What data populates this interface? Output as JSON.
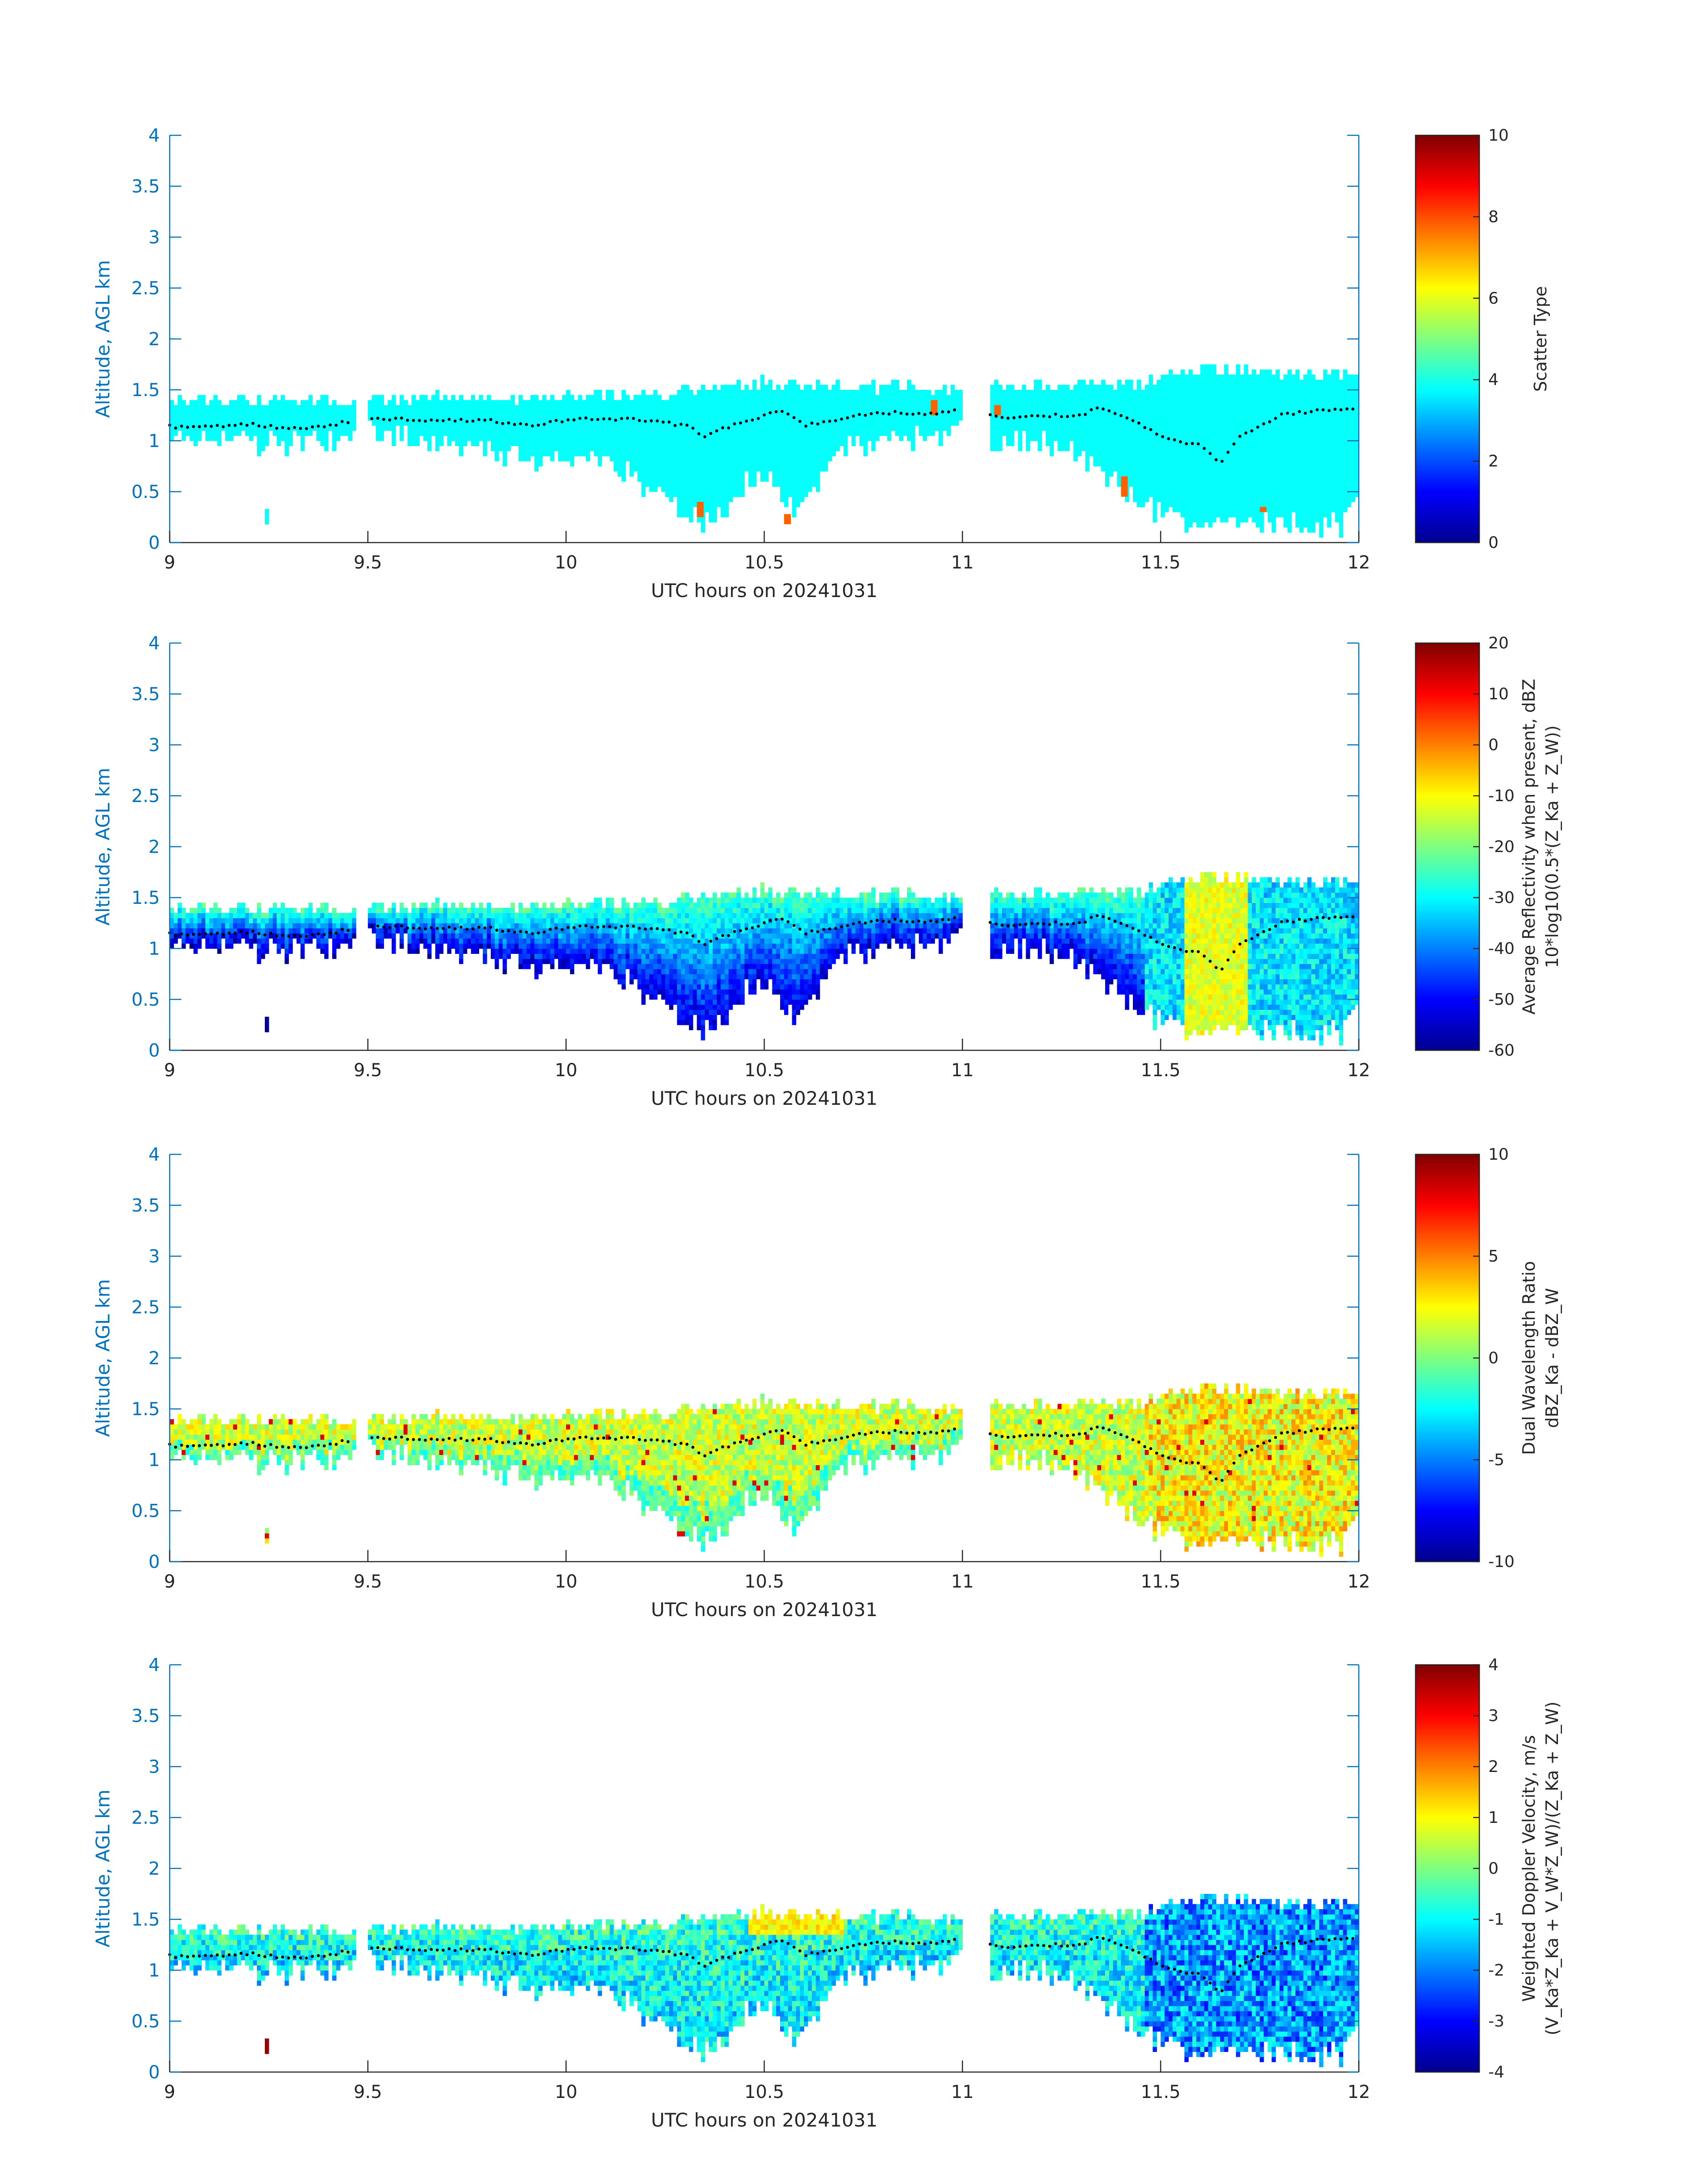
{
  "chart_data": [
    {
      "type": "heatmap",
      "field": "scatter_type",
      "xlabel": "UTC hours on 20241031",
      "ylabel": "Altitude, AGL km",
      "xlim": [
        9,
        12
      ],
      "ylim": [
        0,
        4
      ],
      "xticks": [
        "9",
        "9.5",
        "10",
        "10.5",
        "11",
        "11.5",
        "12"
      ],
      "yticks": [
        "0",
        "0.5",
        "1",
        "1.5",
        "2",
        "2.5",
        "3",
        "3.5",
        "4"
      ],
      "colorbar": {
        "label_lines": [
          "Scatter Type"
        ],
        "range": [
          0,
          10
        ],
        "ticks": [
          "0",
          "2",
          "4",
          "6",
          "8",
          "10"
        ]
      },
      "base_value": 3.8,
      "high_value_patches": [
        {
          "x": 10.33,
          "y0": 0.25,
          "y1": 0.4,
          "value": 7.8
        },
        {
          "x": 10.55,
          "y0": 0.18,
          "y1": 0.28,
          "value": 7.8
        },
        {
          "x": 10.92,
          "y0": 1.25,
          "y1": 1.4,
          "value": 7.8
        },
        {
          "x": 11.08,
          "y0": 1.25,
          "y1": 1.35,
          "value": 7.8
        },
        {
          "x": 11.4,
          "y0": 0.45,
          "y1": 0.65,
          "value": 7.8
        },
        {
          "x": 11.75,
          "y0": 0.3,
          "y1": 0.35,
          "value": 7.8
        }
      ]
    },
    {
      "type": "heatmap",
      "field": "average_reflectivity",
      "xlabel": "UTC hours on 20241031",
      "ylabel": "Altitude, AGL km",
      "xlim": [
        9,
        12
      ],
      "ylim": [
        0,
        4
      ],
      "xticks": [
        "9",
        "9.5",
        "10",
        "10.5",
        "11",
        "11.5",
        "12"
      ],
      "yticks": [
        "0",
        "0.5",
        "1",
        "1.5",
        "2",
        "2.5",
        "3",
        "3.5",
        "4"
      ],
      "colorbar": {
        "label_lines": [
          "Average Reflectivity when present, dBZ",
          "10*log10(0.5*(Z_Ka + Z_W))"
        ],
        "range": [
          -60,
          20
        ],
        "ticks": [
          "-60",
          "-50",
          "-40",
          "-30",
          "-20",
          "-10",
          "0",
          "10",
          "20"
        ]
      }
    },
    {
      "type": "heatmap",
      "field": "dual_wavelength_ratio",
      "xlabel": "UTC hours on 20241031",
      "ylabel": "Altitude, AGL km",
      "xlim": [
        9,
        12
      ],
      "ylim": [
        0,
        4
      ],
      "xticks": [
        "9",
        "9.5",
        "10",
        "10.5",
        "11",
        "11.5",
        "12"
      ],
      "yticks": [
        "0",
        "0.5",
        "1",
        "1.5",
        "2",
        "2.5",
        "3",
        "3.5",
        "4"
      ],
      "colorbar": {
        "label_lines": [
          "Dual Wavelength Ratio",
          "dBZ_Ka - dBZ_W"
        ],
        "range": [
          -10,
          10
        ],
        "ticks": [
          "-10",
          "-5",
          "0",
          "5",
          "10"
        ]
      }
    },
    {
      "type": "heatmap",
      "field": "weighted_doppler_velocity",
      "xlabel": "UTC hours on 20241031",
      "ylabel": "Altitude, AGL km",
      "xlim": [
        9,
        12
      ],
      "ylim": [
        0,
        4
      ],
      "xticks": [
        "9",
        "9.5",
        "10",
        "10.5",
        "11",
        "11.5",
        "12"
      ],
      "yticks": [
        "0",
        "0.5",
        "1",
        "1.5",
        "2",
        "2.5",
        "3",
        "3.5",
        "4"
      ],
      "colorbar": {
        "label_lines": [
          "Weighted Doppler Velocity, m/s",
          "(V_Ka*Z_Ka + V_W*Z_W)/(Z_Ka + Z_W)"
        ],
        "range": [
          -4,
          4
        ],
        "ticks": [
          "-4",
          "-3",
          "-2",
          "-1",
          "0",
          "1",
          "2",
          "3",
          "4"
        ]
      }
    }
  ],
  "cloud_envelope": {
    "columns_per_hour": 100,
    "data_gaps": [
      [
        9.465,
        9.5
      ],
      [
        10.995,
        11.07
      ]
    ],
    "top_km": [
      {
        "x": 9.0,
        "v": 1.35
      },
      {
        "x": 9.5,
        "v": 1.38
      },
      {
        "x": 9.8,
        "v": 1.4
      },
      {
        "x": 10.2,
        "v": 1.42
      },
      {
        "x": 10.5,
        "v": 1.55
      },
      {
        "x": 10.7,
        "v": 1.5
      },
      {
        "x": 11.0,
        "v": 1.5
      },
      {
        "x": 11.3,
        "v": 1.52
      },
      {
        "x": 11.45,
        "v": 1.55
      },
      {
        "x": 11.6,
        "v": 1.7
      },
      {
        "x": 11.8,
        "v": 1.65
      },
      {
        "x": 12.0,
        "v": 1.6
      }
    ],
    "base_km": [
      {
        "x": 9.0,
        "v": 1.0
      },
      {
        "x": 9.45,
        "v": 1.0
      },
      {
        "x": 9.5,
        "v": 1.08
      },
      {
        "x": 9.7,
        "v": 1.0
      },
      {
        "x": 9.9,
        "v": 0.85
      },
      {
        "x": 10.05,
        "v": 0.85
      },
      {
        "x": 10.15,
        "v": 0.7
      },
      {
        "x": 10.25,
        "v": 0.45
      },
      {
        "x": 10.35,
        "v": 0.2
      },
      {
        "x": 10.42,
        "v": 0.45
      },
      {
        "x": 10.48,
        "v": 0.75
      },
      {
        "x": 10.52,
        "v": 0.6
      },
      {
        "x": 10.58,
        "v": 0.25
      },
      {
        "x": 10.63,
        "v": 0.65
      },
      {
        "x": 10.7,
        "v": 0.95
      },
      {
        "x": 10.85,
        "v": 1.05
      },
      {
        "x": 11.0,
        "v": 1.1
      },
      {
        "x": 11.07,
        "v": 1.05
      },
      {
        "x": 11.2,
        "v": 1.0
      },
      {
        "x": 11.3,
        "v": 0.85
      },
      {
        "x": 11.4,
        "v": 0.55
      },
      {
        "x": 11.48,
        "v": 0.35
      },
      {
        "x": 11.55,
        "v": 0.2
      },
      {
        "x": 11.8,
        "v": 0.2
      },
      {
        "x": 11.95,
        "v": 0.2
      },
      {
        "x": 12.0,
        "v": 0.6
      }
    ],
    "isolated_cells": [
      {
        "x": 9.24,
        "y0": 0.18,
        "y1": 0.28
      }
    ]
  },
  "dotted_line_km": [
    {
      "x": 9.0,
      "v": 1.14
    },
    {
      "x": 9.1,
      "v": 1.13
    },
    {
      "x": 9.2,
      "v": 1.16
    },
    {
      "x": 9.3,
      "v": 1.12
    },
    {
      "x": 9.4,
      "v": 1.15
    },
    {
      "x": 9.5,
      "v": 1.23
    },
    {
      "x": 9.6,
      "v": 1.21
    },
    {
      "x": 9.7,
      "v": 1.2
    },
    {
      "x": 9.8,
      "v": 1.2
    },
    {
      "x": 9.9,
      "v": 1.15
    },
    {
      "x": 10.0,
      "v": 1.2
    },
    {
      "x": 10.1,
      "v": 1.22
    },
    {
      "x": 10.2,
      "v": 1.2
    },
    {
      "x": 10.3,
      "v": 1.15
    },
    {
      "x": 10.35,
      "v": 1.05
    },
    {
      "x": 10.4,
      "v": 1.12
    },
    {
      "x": 10.5,
      "v": 1.25
    },
    {
      "x": 10.55,
      "v": 1.3
    },
    {
      "x": 10.6,
      "v": 1.15
    },
    {
      "x": 10.7,
      "v": 1.22
    },
    {
      "x": 10.8,
      "v": 1.28
    },
    {
      "x": 10.9,
      "v": 1.26
    },
    {
      "x": 11.0,
      "v": 1.3
    },
    {
      "x": 11.1,
      "v": 1.22
    },
    {
      "x": 11.2,
      "v": 1.25
    },
    {
      "x": 11.3,
      "v": 1.25
    },
    {
      "x": 11.35,
      "v": 1.33
    },
    {
      "x": 11.4,
      "v": 1.25
    },
    {
      "x": 11.5,
      "v": 1.05
    },
    {
      "x": 11.6,
      "v": 0.95
    },
    {
      "x": 11.65,
      "v": 0.78
    },
    {
      "x": 11.7,
      "v": 1.05
    },
    {
      "x": 11.8,
      "v": 1.25
    },
    {
      "x": 11.9,
      "v": 1.3
    },
    {
      "x": 12.0,
      "v": 1.32
    }
  ]
}
